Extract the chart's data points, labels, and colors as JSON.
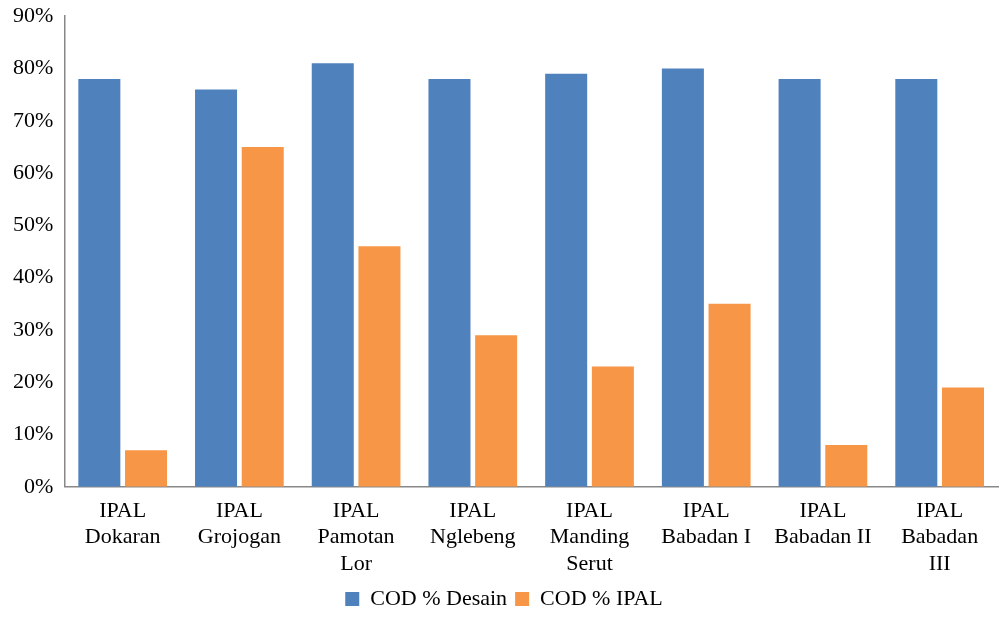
{
  "chart_data": {
    "type": "bar",
    "categories": [
      "IPAL Dokaran",
      "IPAL Grojogan",
      "IPAL Pamotan Lor",
      "IPAL Nglebeng",
      "IPAL Manding Serut",
      "IPAL Babadan I",
      "IPAL Babadan II",
      "IPAL Babadan III"
    ],
    "series": [
      {
        "name": "COD % Desain",
        "color": "#4f81bd",
        "values": [
          78,
          76,
          81,
          78,
          79,
          80,
          78,
          78
        ]
      },
      {
        "name": "COD % IPAL",
        "color": "#f79646",
        "values": [
          7,
          65,
          46,
          29,
          23,
          35,
          8,
          19
        ]
      }
    ],
    "ylim": [
      0,
      90
    ],
    "yticks": [
      {
        "value": 0,
        "label": "0%"
      },
      {
        "value": 10,
        "label": "10%"
      },
      {
        "value": 20,
        "label": "20%"
      },
      {
        "value": 30,
        "label": "30%"
      },
      {
        "value": 40,
        "label": "40%"
      },
      {
        "value": 50,
        "label": "50%"
      },
      {
        "value": 60,
        "label": "60%"
      },
      {
        "value": 70,
        "label": "70%"
      },
      {
        "value": 80,
        "label": "80%"
      },
      {
        "value": 90,
        "label": "90%"
      }
    ],
    "grid": false,
    "legend": "bottom"
  }
}
